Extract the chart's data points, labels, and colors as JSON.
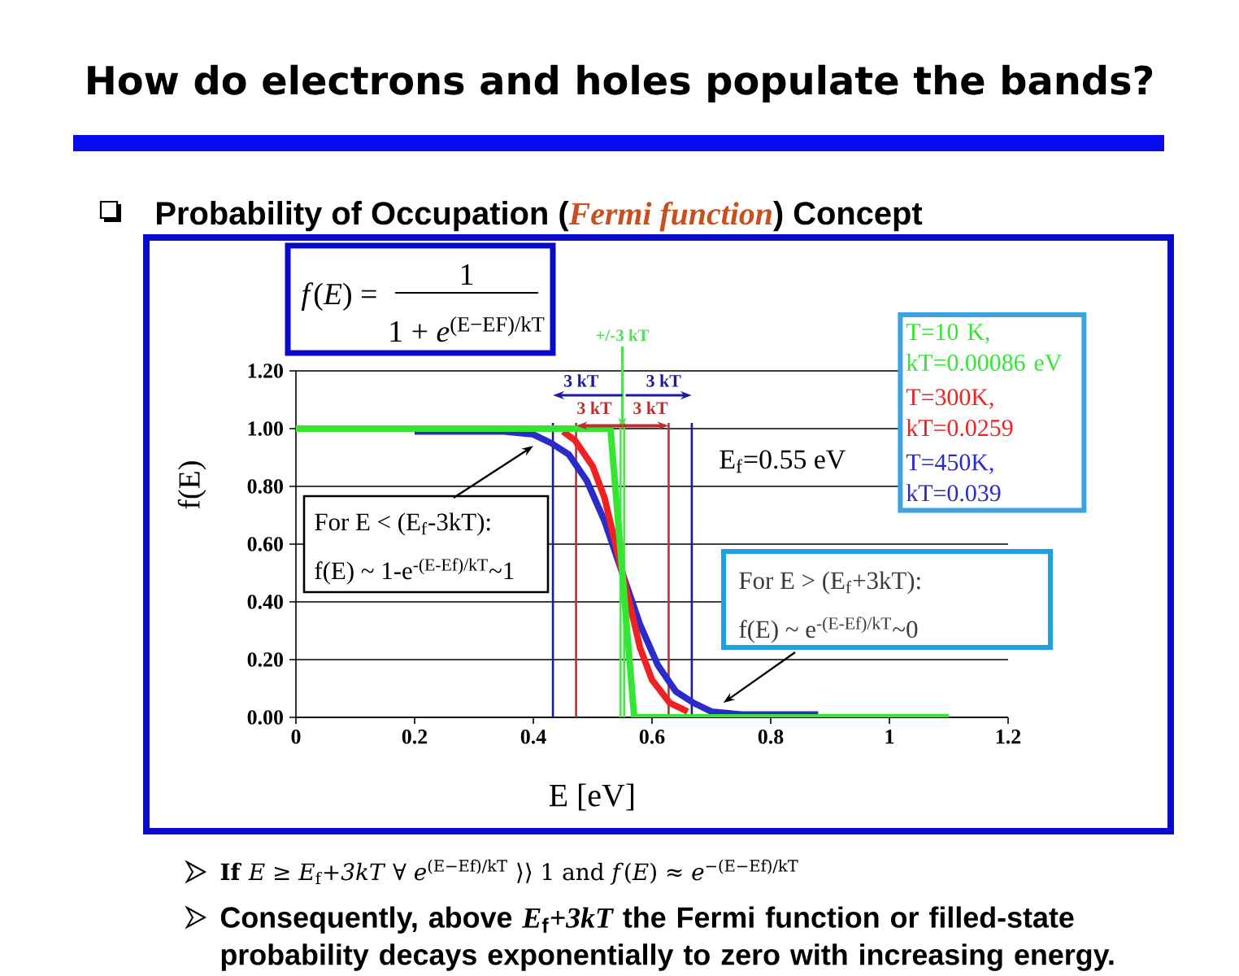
{
  "chart_data": {
    "type": "line",
    "title": "How do electrons and holes populate the bands?",
    "subtitle": "Probability of Occupation (*Fermi function*) Concept",
    "xlabel": "E [eV]",
    "ylabel": "f(E)",
    "xlim": [
      0,
      1.2
    ],
    "ylim": [
      0,
      1.2
    ],
    "xticks": [
      0,
      0.2,
      0.4,
      0.6,
      0.8,
      1,
      1.2
    ],
    "yticks": [
      {
        "value": 0,
        "label": "0.00"
      },
      {
        "value": 0.2,
        "label": "0.20"
      },
      {
        "value": 0.4,
        "label": "0.40"
      },
      {
        "value": 0.6,
        "label": "0.60"
      },
      {
        "value": 0.8,
        "label": "0.80"
      },
      {
        "value": 1,
        "label": "1.00"
      },
      {
        "value": 1.2,
        "label": "1.20"
      }
    ],
    "grid": "y",
    "legend": "top right",
    "series": [
      {
        "name": "T=10 K, kT=0.00086 eV",
        "color": "#33e633",
        "x": [
          0,
          0.53,
          0.57,
          1.1
        ],
        "values": [
          1,
          1,
          0,
          0
        ]
      },
      {
        "name": "T=300K, kT=0.0259",
        "color": "#ee2222",
        "x": [
          0.45,
          0.47,
          0.5,
          0.52,
          0.55,
          0.58,
          0.6,
          0.63,
          0.66
        ],
        "values": [
          0.99,
          0.96,
          0.87,
          0.76,
          0.5,
          0.24,
          0.13,
          0.05,
          0.02
        ]
      },
      {
        "name": "T=450K, kT=0.039",
        "color": "#2b2bcc",
        "x": [
          0.2,
          0.3,
          0.35,
          0.4,
          0.43,
          0.46,
          0.49,
          0.52,
          0.55,
          0.58,
          0.61,
          0.64,
          0.67,
          0.7,
          0.75,
          0.8,
          0.88
        ],
        "values": [
          0.99,
          0.99,
          0.99,
          0.98,
          0.95,
          0.91,
          0.82,
          0.68,
          0.5,
          0.32,
          0.18,
          0.09,
          0.05,
          0.02,
          0.01,
          0.01,
          0.01
        ]
      }
    ],
    "ref_lines": [
      {
        "axis": "x",
        "value": 0.433,
        "color": "#1a1aa0"
      },
      {
        "axis": "x",
        "value": 0.472,
        "color": "#b83030"
      },
      {
        "axis": "x",
        "value": 0.547,
        "color": "#55dd55"
      },
      {
        "axis": "x",
        "value": 0.553,
        "color": "#55dd55"
      },
      {
        "axis": "x",
        "value": 0.628,
        "color": "#b83030"
      },
      {
        "axis": "x",
        "value": 0.667,
        "color": "#1a1aa0"
      }
    ],
    "annotations": [
      {
        "text": "+/-3 kT",
        "x": 0.55,
        "y": 1
      },
      "3 kT",
      "3 kT",
      {
        "text": "3 kT",
        "x": 0.472,
        "y": 1.01
      },
      {
        "text": "3 kT",
        "x": 0.628,
        "y": 1.01
      },
      "E$_{f}$=0.55 eV",
      {
        "text": "For E < (E$_{f}$-3kT):",
        "x": 0.4,
        "y": 0.94
      },
      "f(E) ~ 1-e$^{-(E-Ef)/kT}$~1",
      "For E > (E$_{f}$+3kT):",
      {
        "text": "f(E) ~ e$^{-(E-Ef)/kT}$~0",
        "x": 0.72,
        "y": 0.05
      },
      "*f*(*E*) =",
      "1",
      "1 + *e*$^{(E−EF)/kT}$",
      "**If** *E* ≥ *E*$_{f}$*+3kT* ∀ *e*$^{(E−Ef)/kT}$ ⟩⟩ 1 and *f*(*E*) ≈ *e*$^{−(E−Ef)/kT}$",
      "Consequently, above *E*$_{f}$*+3kT* the Fermi function or filled-state probability decays exponentially to zero with increasing energy."
    ]
  }
}
